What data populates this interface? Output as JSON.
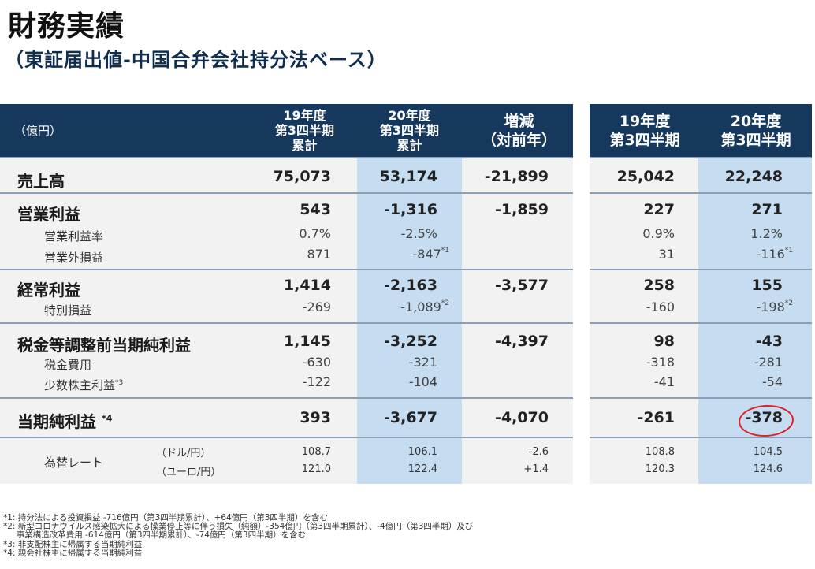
{
  "title": "財務実績",
  "subtitle": "（東証届出値-中国合弁会社持分法ベース）",
  "unit": "（億円）",
  "columns": {
    "c1": [
      "19年度",
      "第3四半期",
      "累計"
    ],
    "c2": [
      "20年度",
      "第3四半期",
      "累計"
    ],
    "c3": [
      "増減",
      "（対前年）"
    ],
    "c4": [
      "19年度",
      "第3四半期"
    ],
    "c5": [
      "20年度",
      "第3四半期"
    ]
  },
  "rows": {
    "sales": {
      "label": "売上高",
      "c1": "75,073",
      "c2": "53,174",
      "c3": "-21,899",
      "c4": "25,042",
      "c5": "22,248"
    },
    "op": {
      "label": "営業利益",
      "c1": "543",
      "c2": "-1,316",
      "c3": "-1,859",
      "c4": "227",
      "c5": "271"
    },
    "opmargin": {
      "label": "営業利益率",
      "c1": "0.7%",
      "c2": "-2.5%",
      "c4": "0.9%",
      "c5": "1.2%"
    },
    "nonop": {
      "label": "営業外損益",
      "c1": "871",
      "c2": "-847",
      "c2_note": "*1",
      "c4": "31",
      "c5": "-116",
      "c5_note": "*1"
    },
    "ord": {
      "label": "経常利益",
      "c1": "1,414",
      "c2": "-2,163",
      "c3": "-3,577",
      "c4": "258",
      "c5": "155"
    },
    "special": {
      "label": "特別損益",
      "c1": "-269",
      "c2": "-1,089",
      "c2_note": "*2",
      "c4": "-160",
      "c5": "-198",
      "c5_note": "*2"
    },
    "pretax": {
      "label": "税金等調整前当期純利益",
      "c1": "1,145",
      "c2": "-3,252",
      "c3": "-4,397",
      "c4": "98",
      "c5": "-43"
    },
    "tax": {
      "label": "税金費用",
      "c1": "-630",
      "c2": "-321",
      "c4": "-318",
      "c5": "-281"
    },
    "minority": {
      "label": "少数株主利益",
      "label_note": "*3",
      "c1": "-122",
      "c2": "-104",
      "c4": "-41",
      "c5": "-54"
    },
    "net": {
      "label": "当期純利益",
      "label_note": "*4",
      "c1": "393",
      "c2": "-3,677",
      "c3": "-4,070",
      "c4": "-261",
      "c5": "-378"
    },
    "fx": {
      "label": "為替レート",
      "usd": {
        "unit": "（ドル/円）",
        "c1": "108.7",
        "c2": "106.1",
        "c3": "-2.6",
        "c4": "108.8",
        "c5": "104.5"
      },
      "eur": {
        "unit": "（ユーロ/円）",
        "c1": "121.0",
        "c2": "122.4",
        "c3": "+1.4",
        "c4": "120.3",
        "c5": "124.6"
      }
    }
  },
  "notes": [
    "*1: 持分法による投資損益 -716億円（第3四半期累計）、+64億円（第3四半期）を含む",
    "*2: 新型コロナウイルス感染拡大による操業停止等に伴う損失（純額）-354億円（第3四半期累計）、-4億円（第3四半期）及び",
    "     事業構造改革費用 -614億円（第3四半期累計）、-74億円（第3四半期）を含む",
    "*3: 非支配株主に帰属する当期純利益",
    "*4: 親会社株主に帰属する当期純利益"
  ],
  "colors": {
    "header": "#16385c",
    "highlight": "#c5dcf1",
    "panel": "#f2f2f2",
    "annotation": "#e0202a"
  }
}
